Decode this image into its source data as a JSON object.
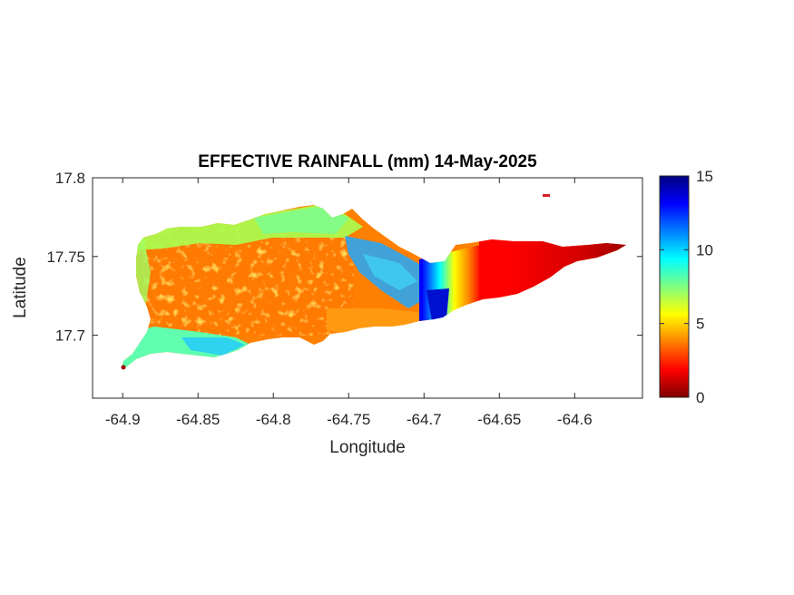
{
  "chart_data": {
    "type": "heatmap",
    "title": "EFFECTIVE RAINFALL (mm) 14-May-2025",
    "xlabel": "Longitude",
    "ylabel": "Latitude",
    "xlim": [
      -64.92,
      -64.555
    ],
    "ylim": [
      17.66,
      17.8
    ],
    "xticks": [
      -64.9,
      -64.85,
      -64.8,
      -64.75,
      -64.7,
      -64.65,
      -64.6
    ],
    "xtick_labels": [
      "-64.9",
      "-64.85",
      "-64.8",
      "-64.75",
      "-64.7",
      "-64.65",
      "-64.6"
    ],
    "yticks": [
      17.7,
      17.75,
      17.8
    ],
    "ytick_labels": [
      "17.7",
      "17.75",
      "17.8"
    ],
    "colorbar": {
      "colormap": "jet",
      "clim": [
        0,
        15
      ],
      "ticks": [
        0,
        5,
        10,
        15
      ],
      "tick_labels": [
        "0",
        "5",
        "10",
        "15"
      ]
    },
    "regions": [
      {
        "area": "west-central island interior",
        "approx_value": 3
      },
      {
        "area": "southwest and northwest coast",
        "approx_value": 8
      },
      {
        "area": "north-central hills",
        "approx_value": 7
      },
      {
        "area": "east-central band",
        "approx_value": 11
      },
      {
        "area": "maximum near -64.69, 17.71",
        "approx_value": 15
      },
      {
        "area": "eastern end",
        "approx_value": 1
      }
    ],
    "grid": false
  }
}
